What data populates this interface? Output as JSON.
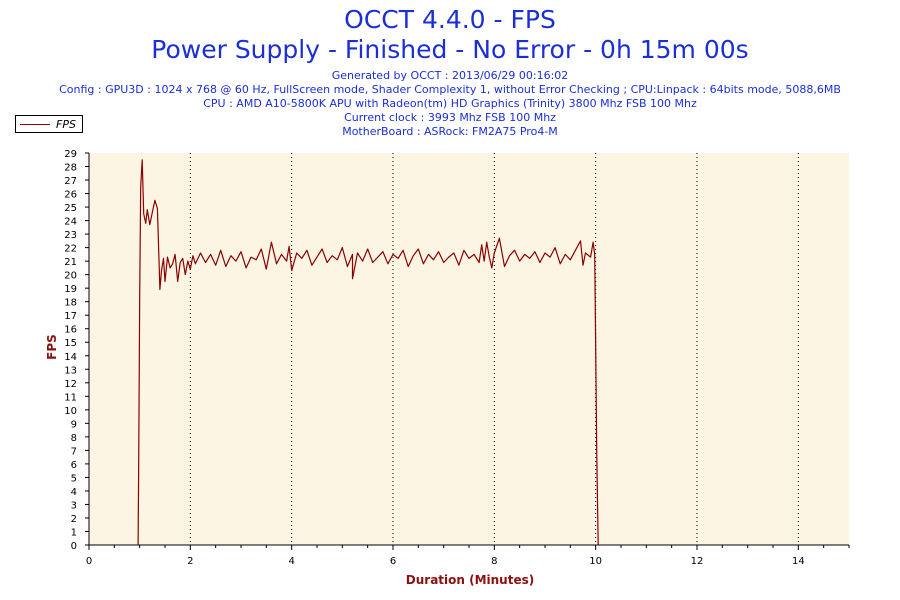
{
  "header": {
    "title": "OCCT 4.4.0 - FPS",
    "subtitle": "Power Supply - Finished - No Error - 0h 15m 00s",
    "info_lines": [
      "Generated by OCCT : 2013/06/29 00:16:02",
      "Config : GPU3D : 1024 x 768 @ 60 Hz, FullScreen mode, Shader Complexity 1, without Error Checking ; CPU:Linpack : 64bits mode, 5088,6MB",
      "CPU : AMD A10-5800K APU with Radeon(tm) HD Graphics (Trinity) 3800 Mhz FSB 100 Mhz",
      "Current clock : 3993 Mhz FSB 100 Mhz",
      "MotherBoard : ASRock: FM2A75 Pro4-M"
    ]
  },
  "legend": {
    "label": "FPS"
  },
  "colors": {
    "plot_bg": "#fdf5e4",
    "line": "#8b0000",
    "title": "#1a2fd6",
    "axis_title": "#8b1010"
  },
  "chart_data": {
    "type": "line",
    "xlabel": "Duration (Minutes)",
    "ylabel": "FPS",
    "xlim": [
      0,
      15
    ],
    "ylim": [
      0,
      29
    ],
    "x_ticks": [
      0,
      2,
      4,
      6,
      8,
      10,
      12,
      14
    ],
    "y_ticks": [
      0,
      1,
      2,
      3,
      4,
      5,
      6,
      7,
      8,
      9,
      10,
      11,
      12,
      13,
      14,
      15,
      16,
      17,
      18,
      19,
      20,
      21,
      22,
      23,
      24,
      25,
      26,
      27,
      28,
      29
    ],
    "y_tick_labels": [
      "0",
      "1",
      "2",
      "3",
      "4",
      "5",
      "6",
      "7",
      "8",
      "9",
      "10",
      "11",
      "12",
      "13",
      "14",
      "15",
      "16",
      "17",
      "18",
      "19",
      "20",
      "21",
      "22",
      "23",
      "24",
      "25",
      "26",
      "27",
      "28",
      "29"
    ],
    "grid": "vertical dotted",
    "series": [
      {
        "name": "FPS",
        "x": [
          0.97,
          0.98,
          1.0,
          1.02,
          1.05,
          1.08,
          1.12,
          1.15,
          1.2,
          1.25,
          1.3,
          1.35,
          1.4,
          1.43,
          1.47,
          1.5,
          1.55,
          1.6,
          1.65,
          1.7,
          1.75,
          1.8,
          1.85,
          1.9,
          1.95,
          2.0,
          2.05,
          2.1,
          2.2,
          2.3,
          2.4,
          2.5,
          2.6,
          2.7,
          2.8,
          2.9,
          3.0,
          3.1,
          3.2,
          3.3,
          3.4,
          3.5,
          3.6,
          3.7,
          3.8,
          3.9,
          3.95,
          4.0,
          4.1,
          4.2,
          4.3,
          4.4,
          4.5,
          4.6,
          4.7,
          4.8,
          4.9,
          5.0,
          5.1,
          5.2,
          5.2,
          5.3,
          5.4,
          5.5,
          5.6,
          5.7,
          5.8,
          5.9,
          6.0,
          6.1,
          6.2,
          6.3,
          6.4,
          6.5,
          6.6,
          6.7,
          6.8,
          6.9,
          7.0,
          7.1,
          7.2,
          7.3,
          7.4,
          7.5,
          7.6,
          7.7,
          7.75,
          7.8,
          7.85,
          7.9,
          7.95,
          8.0,
          8.1,
          8.2,
          8.3,
          8.4,
          8.5,
          8.6,
          8.7,
          8.8,
          8.9,
          9.0,
          9.1,
          9.2,
          9.3,
          9.4,
          9.5,
          9.6,
          9.7,
          9.75,
          9.8,
          9.9,
          9.95,
          9.98,
          10.0,
          10.02,
          10.05
        ],
        "y": [
          0.0,
          6.2,
          18.5,
          26.5,
          28.5,
          24.5,
          23.8,
          24.8,
          23.7,
          24.6,
          25.5,
          24.9,
          18.9,
          20.3,
          21.2,
          19.5,
          21.3,
          20.5,
          20.8,
          21.5,
          19.5,
          20.9,
          21.2,
          20.0,
          21.0,
          20.4,
          21.4,
          20.8,
          21.6,
          20.9,
          21.5,
          20.7,
          21.8,
          20.6,
          21.4,
          21.0,
          21.7,
          20.5,
          21.3,
          21.1,
          21.9,
          20.4,
          22.4,
          20.8,
          21.5,
          21.0,
          22.1,
          20.3,
          21.6,
          21.2,
          21.8,
          20.7,
          21.3,
          21.9,
          20.9,
          21.4,
          21.1,
          22.0,
          20.6,
          21.5,
          19.7,
          21.6,
          21.0,
          21.9,
          20.9,
          21.3,
          21.7,
          20.8,
          21.5,
          21.2,
          21.8,
          20.6,
          21.4,
          21.9,
          20.8,
          21.5,
          21.1,
          21.7,
          20.9,
          21.3,
          21.6,
          20.7,
          21.8,
          21.2,
          21.5,
          20.9,
          22.2,
          21.0,
          22.4,
          21.3,
          20.5,
          21.6,
          22.7,
          20.6,
          21.4,
          21.8,
          21.0,
          21.5,
          21.2,
          21.7,
          20.9,
          21.6,
          21.3,
          22.0,
          20.8,
          21.5,
          21.1,
          21.8,
          22.5,
          20.7,
          21.6,
          21.3,
          22.4,
          21.5,
          14.6,
          7.0,
          0.0
        ]
      }
    ]
  },
  "svg_labels": {
    "chart_svg": "fps-chart"
  }
}
